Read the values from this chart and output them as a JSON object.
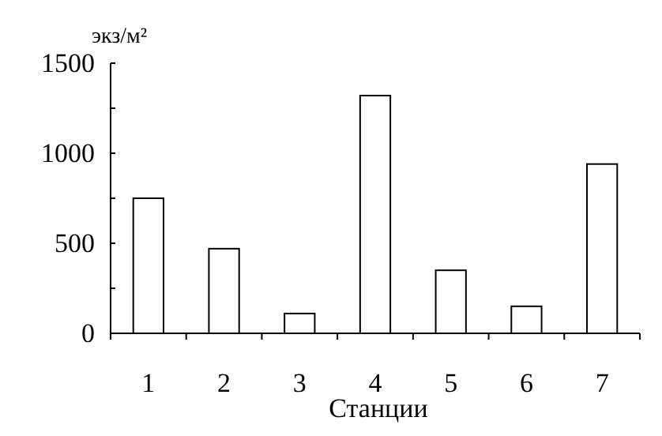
{
  "chart_data": {
    "type": "bar",
    "ylabel": "экз/м²",
    "xlabel": "Станции",
    "categories": [
      "1",
      "2",
      "3",
      "4",
      "5",
      "6",
      "7"
    ],
    "values": [
      750,
      470,
      110,
      1320,
      350,
      150,
      940
    ],
    "color": "#ffffff",
    "ylim": [
      0,
      1500
    ],
    "yticks": [
      0,
      {
        "value": 250,
        "label": null
      },
      500,
      {
        "value": 750,
        "label": null
      },
      1000,
      {
        "value": 1250,
        "label": null
      },
      1500
    ],
    "grid": false
  }
}
